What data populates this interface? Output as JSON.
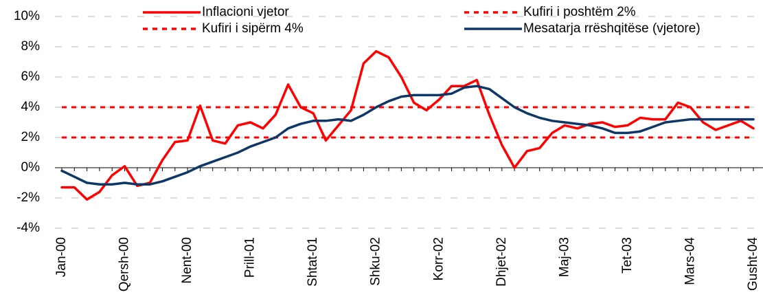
{
  "chart_data": {
    "type": "line",
    "categories": [
      "Jan-00",
      null,
      null,
      null,
      null,
      "Qersh-00",
      null,
      null,
      null,
      null,
      "Nent-00",
      null,
      null,
      null,
      null,
      "Prill-01",
      null,
      null,
      null,
      null,
      "Shtat-01",
      null,
      null,
      null,
      null,
      "Shku-02",
      null,
      null,
      null,
      null,
      "Korr-02",
      null,
      null,
      null,
      null,
      "Dhjet-02",
      null,
      null,
      null,
      null,
      "Maj-03",
      null,
      null,
      null,
      null,
      "Tet-03",
      null,
      null,
      null,
      null,
      "Mars-04",
      null,
      null,
      null,
      null,
      "Gusht-04"
    ],
    "series": [
      {
        "name": "Inflacioni vjetor",
        "color": "#ff0000",
        "style": "solid",
        "values": [
          -1.3,
          -1.3,
          -2.1,
          -1.6,
          -0.5,
          0.1,
          -1.2,
          -1.0,
          0.5,
          1.7,
          1.8,
          4.1,
          1.8,
          1.6,
          2.8,
          3.0,
          2.6,
          3.5,
          5.5,
          4.0,
          3.6,
          1.8,
          2.8,
          3.8,
          6.9,
          7.7,
          7.3,
          6.0,
          4.3,
          3.8,
          4.5,
          5.4,
          5.4,
          5.8,
          3.5,
          1.5,
          0.0,
          1.1,
          1.3,
          2.3,
          2.8,
          2.6,
          2.9,
          3.0,
          2.7,
          2.8,
          3.3,
          3.2,
          3.2,
          4.3,
          4.0,
          3.0,
          2.5,
          2.8,
          3.1,
          2.6
        ]
      },
      {
        "name": "Kufiri i poshtëm 2%",
        "color": "#ff0000",
        "style": "dashed",
        "values": [
          2,
          2,
          2,
          2,
          2,
          2,
          2,
          2,
          2,
          2,
          2,
          2,
          2,
          2,
          2,
          2,
          2,
          2,
          2,
          2,
          2,
          2,
          2,
          2,
          2,
          2,
          2,
          2,
          2,
          2,
          2,
          2,
          2,
          2,
          2,
          2,
          2,
          2,
          2,
          2,
          2,
          2,
          2,
          2,
          2,
          2,
          2,
          2,
          2,
          2,
          2,
          2,
          2,
          2,
          2,
          2
        ]
      },
      {
        "name": "Kufiri i sipërm 4%",
        "color": "#ff0000",
        "style": "dashed",
        "values": [
          4,
          4,
          4,
          4,
          4,
          4,
          4,
          4,
          4,
          4,
          4,
          4,
          4,
          4,
          4,
          4,
          4,
          4,
          4,
          4,
          4,
          4,
          4,
          4,
          4,
          4,
          4,
          4,
          4,
          4,
          4,
          4,
          4,
          4,
          4,
          4,
          4,
          4,
          4,
          4,
          4,
          4,
          4,
          4,
          4,
          4,
          4,
          4,
          4,
          4,
          4,
          4,
          4,
          4,
          4,
          4
        ]
      },
      {
        "name": "Mesatarja rrëshqitëse (vjetore)",
        "color": "#0c3766",
        "style": "solid",
        "values": [
          -0.2,
          -0.6,
          -1.0,
          -1.1,
          -1.1,
          -1.0,
          -1.1,
          -1.1,
          -0.9,
          -0.6,
          -0.3,
          0.1,
          0.4,
          0.7,
          1.0,
          1.4,
          1.7,
          2.0,
          2.6,
          2.9,
          3.1,
          3.1,
          3.2,
          3.1,
          3.5,
          4.0,
          4.4,
          4.7,
          4.8,
          4.8,
          4.8,
          4.9,
          5.3,
          5.4,
          5.2,
          4.6,
          4.0,
          3.6,
          3.3,
          3.1,
          3.0,
          2.9,
          2.8,
          2.6,
          2.3,
          2.3,
          2.4,
          2.7,
          3.0,
          3.1,
          3.2,
          3.2,
          3.2,
          3.2,
          3.2,
          3.2
        ]
      }
    ],
    "ylim": [
      -4,
      10
    ],
    "yticks": [
      {
        "value": -4,
        "label": "-4%"
      },
      {
        "value": -2,
        "label": "-2%"
      },
      {
        "value": 0,
        "label": "0%"
      },
      {
        "value": 2,
        "label": "2%"
      },
      {
        "value": 4,
        "label": "4%"
      },
      {
        "value": 6,
        "label": "6%"
      },
      {
        "value": 8,
        "label": "8%"
      },
      {
        "value": 10,
        "label": "10%"
      }
    ],
    "grid": true
  }
}
